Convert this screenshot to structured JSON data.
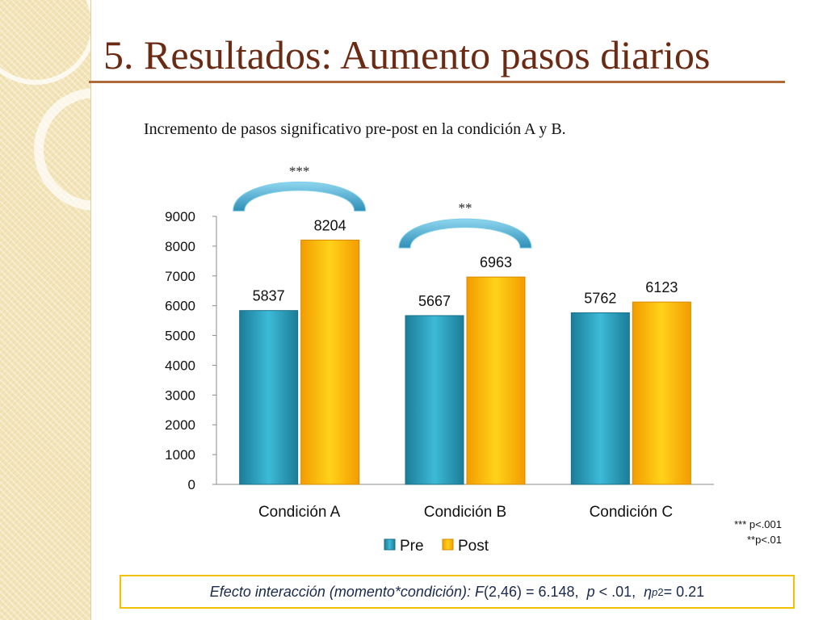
{
  "slide": {
    "title": "5. Resultados: Aumento pasos diarios",
    "subtitle": "Incremento de pasos significativo pre-post en la condición A y B."
  },
  "notes": {
    "line1": "*** p<.001",
    "line2": "**p<.01"
  },
  "effect": {
    "label": "Efecto interacción (momento*condición):",
    "f_symbol": "F",
    "f_rest": "(2,46) = 6.148,",
    "p_symbol": "p",
    "p_rest": "< .01,",
    "eta_symbol": "η",
    "eta_sub": "p",
    "eta_sup": "2",
    "eta_rest": "= 0.21"
  },
  "colors": {
    "title": "#6b2a14",
    "pre": "#2aa3c4",
    "pre_dark": "#1b6f88",
    "post": "#fbbf0c",
    "post_dark": "#d68a00",
    "arc": "#3aa6cf",
    "effect_border": "#f2c200"
  },
  "chart_data": {
    "type": "bar",
    "title": "",
    "xlabel": "",
    "ylabel": "",
    "categories": [
      "Condición A",
      "Condición B",
      "Condición C"
    ],
    "series": [
      {
        "name": "Pre",
        "values": [
          5837,
          5667,
          5762
        ]
      },
      {
        "name": "Post",
        "values": [
          8204,
          6963,
          6123
        ]
      }
    ],
    "ylim": [
      0,
      9000
    ],
    "yticks": [
      0,
      1000,
      2000,
      3000,
      4000,
      5000,
      6000,
      7000,
      8000,
      9000
    ],
    "legend": "bottom",
    "grid": false,
    "significance": [
      {
        "category": "Condición A",
        "label": "***"
      },
      {
        "category": "Condición B",
        "label": "**"
      }
    ]
  }
}
